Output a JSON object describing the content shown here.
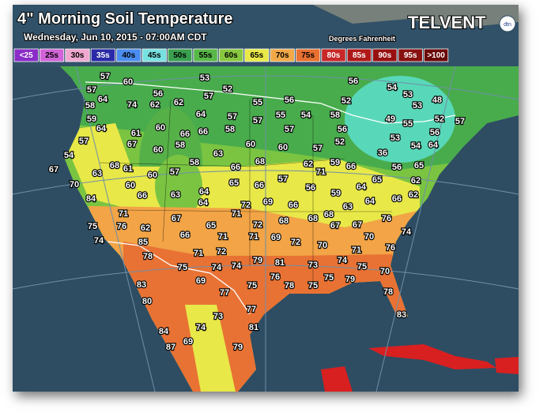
{
  "title": "4\" Morning Soil Temperature",
  "subtitle": "Wednesday, Jun 10, 2015 - 07:00AM CDT",
  "units": "Degrees Fahrenheit",
  "brand": "TELVENT",
  "brand_badge": "dtn",
  "legend": [
    {
      "label": "<25",
      "color": "#8a2cc8"
    },
    {
      "label": "25s",
      "color": "#d064d8"
    },
    {
      "label": "30s",
      "color": "#f0a8d0"
    },
    {
      "label": "35s",
      "color": "#2a2aa8"
    },
    {
      "label": "40s",
      "color": "#4a8cf0"
    },
    {
      "label": "45s",
      "color": "#78e0e0"
    },
    {
      "label": "50s",
      "color": "#3aa050"
    },
    {
      "label": "55s",
      "color": "#58b848"
    },
    {
      "label": "60s",
      "color": "#88c840"
    },
    {
      "label": "65s",
      "color": "#e8e848"
    },
    {
      "label": "70s",
      "color": "#f0a848"
    },
    {
      "label": "75s",
      "color": "#e87030"
    },
    {
      "label": "80s",
      "color": "#c82828"
    },
    {
      "label": "85s",
      "color": "#b01818"
    },
    {
      "label": "90s",
      "color": "#981010"
    },
    {
      "label": "95s",
      "color": "#881010"
    },
    {
      "label": ">100",
      "color": "#6a0808"
    }
  ],
  "stations": [
    57,
    60,
    53,
    52,
    56,
    54,
    53,
    48,
    57,
    64,
    56,
    62,
    57,
    55,
    56,
    52,
    53,
    58,
    74,
    62,
    64,
    57,
    57,
    55,
    54,
    58,
    49,
    55,
    52,
    57,
    59,
    64,
    60,
    66,
    66,
    58,
    57,
    56,
    56,
    61,
    57,
    67,
    58,
    60,
    60,
    57,
    52,
    36,
    54,
    64,
    60,
    63,
    53,
    54,
    68,
    61,
    58,
    66,
    68,
    62,
    59,
    66,
    56,
    65,
    67,
    63,
    60,
    57,
    66,
    57,
    71,
    65,
    62,
    70,
    60,
    65,
    56,
    59,
    64,
    84,
    66,
    63,
    64,
    69,
    66,
    63,
    64,
    66,
    62,
    72,
    64,
    71,
    68,
    68,
    68,
    67,
    67,
    76,
    71,
    67,
    65,
    72,
    75,
    76,
    62,
    66,
    71,
    71,
    69,
    72,
    70,
    74,
    74,
    85,
    70,
    71,
    76,
    78,
    71,
    72,
    79,
    81,
    73,
    74,
    75,
    75,
    74,
    74,
    76,
    78,
    75,
    75,
    79,
    70,
    83,
    69,
    75,
    78,
    80,
    77,
    77,
    83,
    73,
    84,
    74,
    81,
    87,
    69,
    79
  ]
}
